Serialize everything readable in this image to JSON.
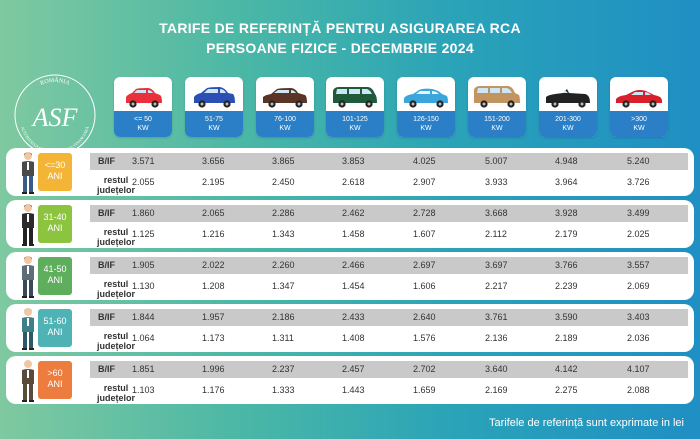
{
  "title": {
    "line1": "TARIFE DE REFERINȚĂ PENTRU ASIGURAREA RCA",
    "line2": "PERSOANE FIZICE - DECEMBRIE 2024"
  },
  "logo": {
    "country": "ROMÂNIA",
    "initials": "ASF",
    "org": "AUTORITATEA DE SUPRAVEGHERE FINANCIARĂ"
  },
  "categories": [
    {
      "range": "<= 50",
      "unit": "KW",
      "color": "#e8313c",
      "icon": "small-hatchback-car-icon"
    },
    {
      "range": "51-75",
      "unit": "KW",
      "color": "#2a4fb5",
      "icon": "compact-car-icon"
    },
    {
      "range": "76-100",
      "unit": "KW",
      "color": "#5a3526",
      "icon": "sedan-car-icon"
    },
    {
      "range": "101-125",
      "unit": "KW",
      "color": "#1f5a3a",
      "icon": "minivan-car-icon"
    },
    {
      "range": "126-150",
      "unit": "KW",
      "color": "#3aa6dc",
      "icon": "coupe-car-icon"
    },
    {
      "range": "151-200",
      "unit": "KW",
      "color": "#c29560",
      "icon": "suv-car-icon"
    },
    {
      "range": "201-300",
      "unit": "KW",
      "color": "#222222",
      "icon": "convertible-car-icon"
    },
    {
      ">": "",
      "range": ">300",
      "unit": "KW",
      "color": "#d81f2a",
      "icon": "sports-car-icon"
    }
  ],
  "row_labels": {
    "bif": "B/IF",
    "rest_line1": "restul",
    "rest_line2": "județelor"
  },
  "age_groups": [
    {
      "age": "<=30",
      "unit": "ANI",
      "badge_color": "#f4b537",
      "person": "young-man-icon",
      "bif": [
        "3.571",
        "3.656",
        "3.865",
        "3.853",
        "4.025",
        "5.007",
        "4.948",
        "5.240"
      ],
      "rest": [
        "2.055",
        "2.195",
        "2.450",
        "2.618",
        "2.907",
        "3.933",
        "3.964",
        "3.726"
      ]
    },
    {
      "age": "31-40",
      "unit": "ANI",
      "badge_color": "#8cc43f",
      "person": "man-in-suit-icon",
      "bif": [
        "1.860",
        "2.065",
        "2.286",
        "2.462",
        "2.728",
        "3.668",
        "3.928",
        "3.499"
      ],
      "rest": [
        "1.125",
        "1.216",
        "1.343",
        "1.458",
        "1.607",
        "2.112",
        "2.179",
        "2.025"
      ]
    },
    {
      "age": "41-50",
      "unit": "ANI",
      "badge_color": "#5fae5e",
      "person": "man-icon",
      "bif": [
        "1.905",
        "2.022",
        "2.260",
        "2.466",
        "2.697",
        "3.697",
        "3.766",
        "3.557"
      ],
      "rest": [
        "1.130",
        "1.208",
        "1.347",
        "1.454",
        "1.606",
        "2.217",
        "2.239",
        "2.069"
      ]
    },
    {
      "age": "51-60",
      "unit": "ANI",
      "badge_color": "#4fb3b6",
      "person": "older-man-icon",
      "bif": [
        "1.844",
        "1.957",
        "2.186",
        "2.433",
        "2.640",
        "3.761",
        "3.590",
        "3.403"
      ],
      "rest": [
        "1.064",
        "1.173",
        "1.311",
        "1.408",
        "1.576",
        "2.136",
        "2.189",
        "2.036"
      ]
    },
    {
      "age": ">60",
      "unit": "ANI",
      "badge_color": "#ec7d3e",
      "person": "senior-man-icon",
      "bif": [
        "1.851",
        "1.996",
        "2.237",
        "2.457",
        "2.702",
        "3.640",
        "4.142",
        "4.107"
      ],
      "rest": [
        "1.103",
        "1.176",
        "1.333",
        "1.443",
        "1.659",
        "2.169",
        "2.275",
        "2.088"
      ]
    }
  ],
  "footnote": "Tarifele de referință sunt exprimate in lei"
}
